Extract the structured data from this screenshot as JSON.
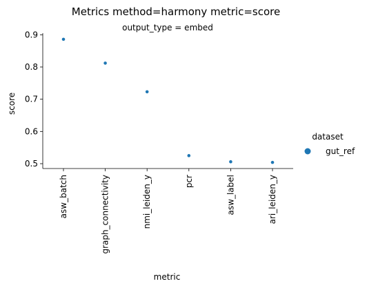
{
  "chart_data": {
    "type": "scatter",
    "title": "Metrics method=harmony metric=score",
    "subtitle": "output_type = embed",
    "xlabel": "metric",
    "ylabel": "score",
    "categories": [
      "asw_batch",
      "graph_connectivity",
      "nmi_leiden_y",
      "pcr",
      "asw_label",
      "ari_leiden_y"
    ],
    "series": [
      {
        "name": "gut_ref",
        "values": [
          0.886,
          0.812,
          0.723,
          0.525,
          0.506,
          0.504
        ],
        "color": "#1f77b4"
      }
    ],
    "yticks": [
      0.5,
      0.6,
      0.7,
      0.8,
      0.9
    ],
    "ylim": [
      0.485,
      0.905
    ],
    "grid": false,
    "legend": {
      "title": "dataset",
      "placement": "right"
    }
  }
}
